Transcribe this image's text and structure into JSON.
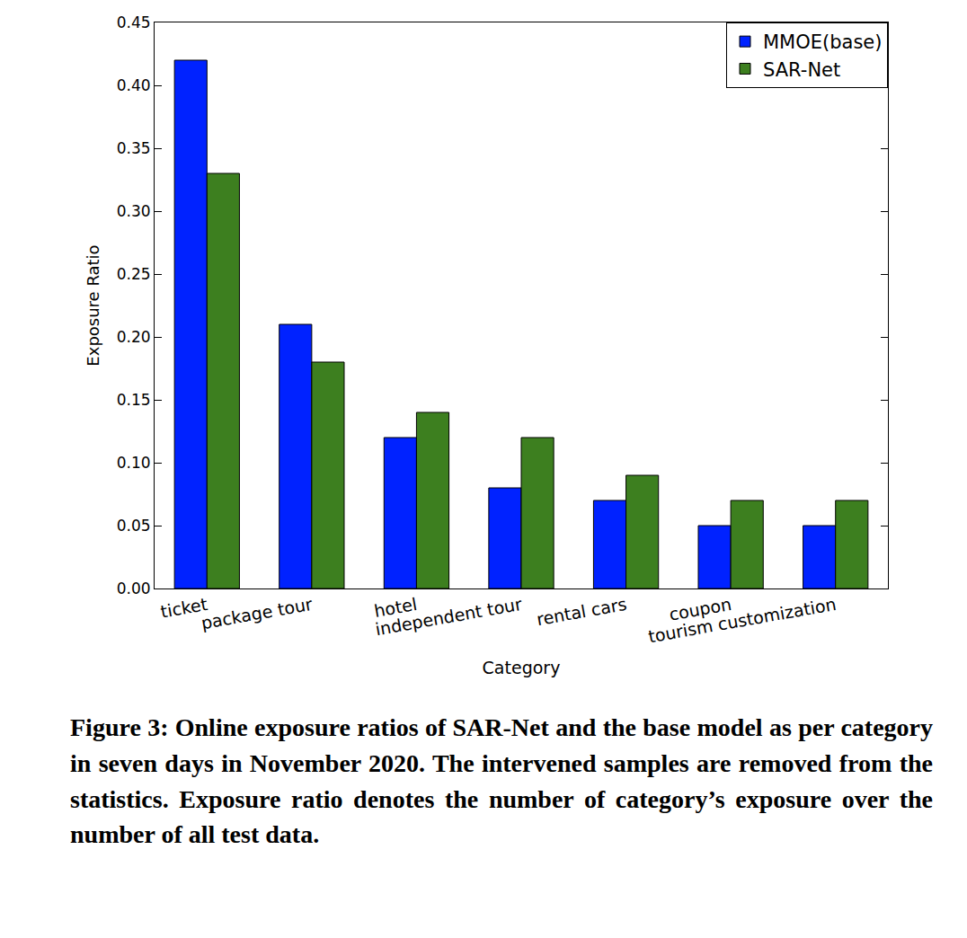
{
  "chart_data": {
    "type": "bar",
    "x_label": "Category",
    "y_label": "Exposure Ratio",
    "categories": [
      "ticket",
      "package tour",
      "hotel",
      "independent tour",
      "rental cars",
      "coupon",
      "tourism customization"
    ],
    "series": [
      {
        "name": "MMOE(base)",
        "color": "#0022ff",
        "values": [
          0.42,
          0.21,
          0.12,
          0.08,
          0.07,
          0.05,
          0.05
        ]
      },
      {
        "name": "SAR-Net",
        "color": "#3d7f1f",
        "values": [
          0.33,
          0.18,
          0.14,
          0.12,
          0.09,
          0.07,
          0.07
        ]
      }
    ],
    "ylim": [
      0,
      0.45
    ],
    "yticks": [
      {
        "value": 0,
        "label": "0.00"
      },
      0.05,
      {
        "value": 0.1,
        "label": "0.10"
      },
      0.15,
      {
        "value": 0.2,
        "label": "0.20"
      },
      0.25,
      {
        "value": 0.3,
        "label": "0.30"
      },
      0.35,
      {
        "value": 0.4,
        "label": "0.40"
      },
      0.45
    ],
    "grid": false,
    "legend": "upper right"
  },
  "caption": "Figure 3: Online exposure ratios of SAR-Net and the base model as per category in seven days in November 2020. The intervened samples are removed from the statistics. Exposure ratio denotes the number of category’s exposure over the number of all test data."
}
